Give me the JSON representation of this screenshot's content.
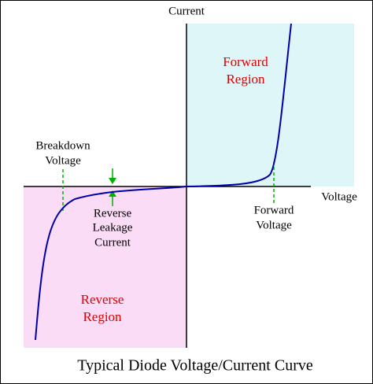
{
  "axes": {
    "y_label": "Current",
    "x_label": "Voltage"
  },
  "regions": {
    "forward": [
      "Forward",
      "Region"
    ],
    "reverse": [
      "Reverse",
      "Region"
    ]
  },
  "annotations": {
    "breakdown": [
      "Breakdown",
      "Voltage"
    ],
    "forward_voltage": [
      "Forward",
      "Voltage"
    ],
    "leakage": [
      "Reverse",
      "Leakage",
      "Current"
    ]
  },
  "caption": "Typical Diode Voltage/Current Curve"
}
